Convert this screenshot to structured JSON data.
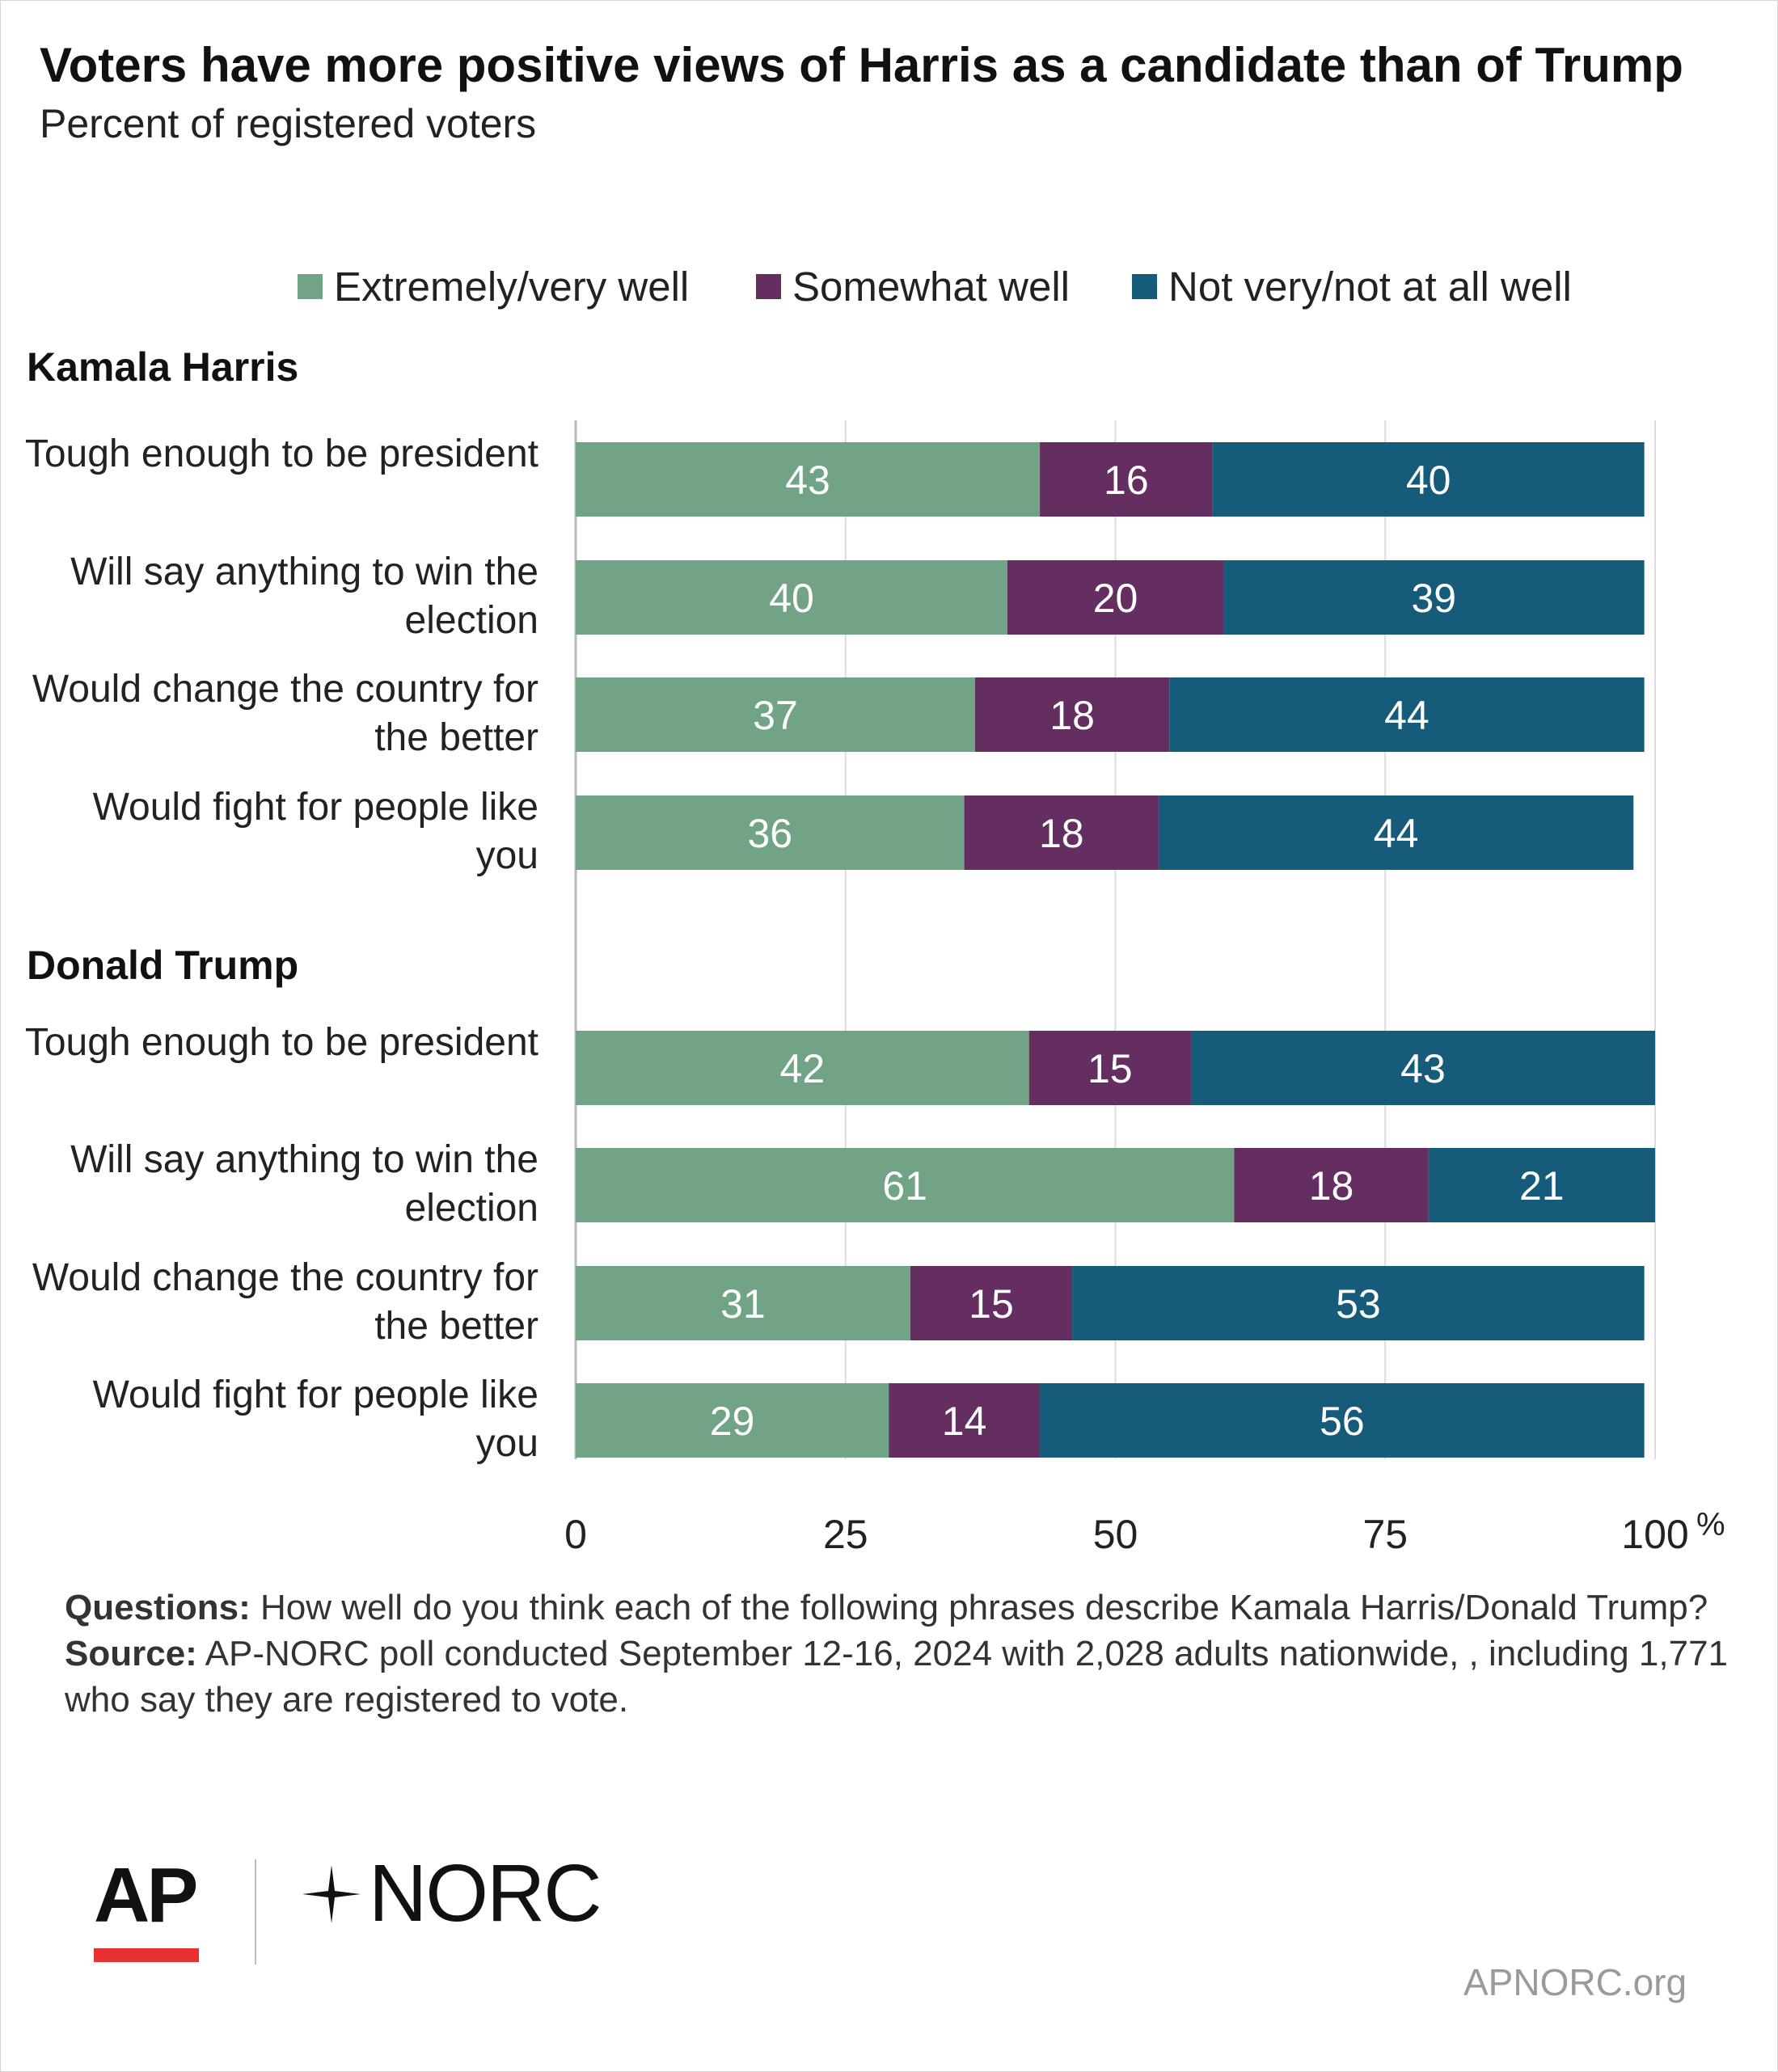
{
  "title": "Voters have more positive views of Harris as a candidate than of Trump",
  "subtitle": "Percent of registered voters",
  "legend": [
    {
      "label": "Extremely/very well",
      "color": "#71a387"
    },
    {
      "label": "Somewhat well",
      "color": "#642e60"
    },
    {
      "label": "Not very/not at all well",
      "color": "#175b7b"
    }
  ],
  "chart_data": {
    "type": "bar",
    "orientation": "horizontal",
    "stacked": true,
    "xlim": [
      0,
      100
    ],
    "x_ticks": [
      "0",
      "25",
      "50",
      "75",
      "100"
    ],
    "x_unit": "%",
    "grid": true,
    "legend_position": "top",
    "series_names": [
      "Extremely/very well",
      "Somewhat well",
      "Not very/not at all well"
    ],
    "groups": [
      {
        "name": "Kamala Harris",
        "rows": [
          {
            "label": "Tough enough to be president",
            "values": [
              43,
              16,
              40
            ]
          },
          {
            "label": "Will say anything to win the election",
            "values": [
              40,
              20,
              39
            ]
          },
          {
            "label": "Would change the country for the better",
            "values": [
              37,
              18,
              44
            ]
          },
          {
            "label": "Would fight for people like you",
            "values": [
              36,
              18,
              44
            ]
          }
        ]
      },
      {
        "name": "Donald Trump",
        "rows": [
          {
            "label": "Tough enough to be president",
            "values": [
              42,
              15,
              43
            ]
          },
          {
            "label": "Will say anything to win the election",
            "values": [
              61,
              18,
              21
            ]
          },
          {
            "label": "Would change the country for the better",
            "values": [
              31,
              15,
              53
            ]
          },
          {
            "label": "Would fight for people like you",
            "values": [
              29,
              14,
              56
            ]
          }
        ]
      }
    ]
  },
  "notes": {
    "questions_label": "Questions:",
    "questions_text": " How well do you think each of the following phrases describe Kamala Harris/Donald Trump?",
    "source_label": "Source:",
    "source_text": " AP-NORC poll conducted September 12-16, 2024 with 2,028 adults nationwide, , including 1,771 who say they are registered to vote."
  },
  "logos": {
    "ap": "AP",
    "norc": "NORC"
  },
  "site": "APNORC.org"
}
